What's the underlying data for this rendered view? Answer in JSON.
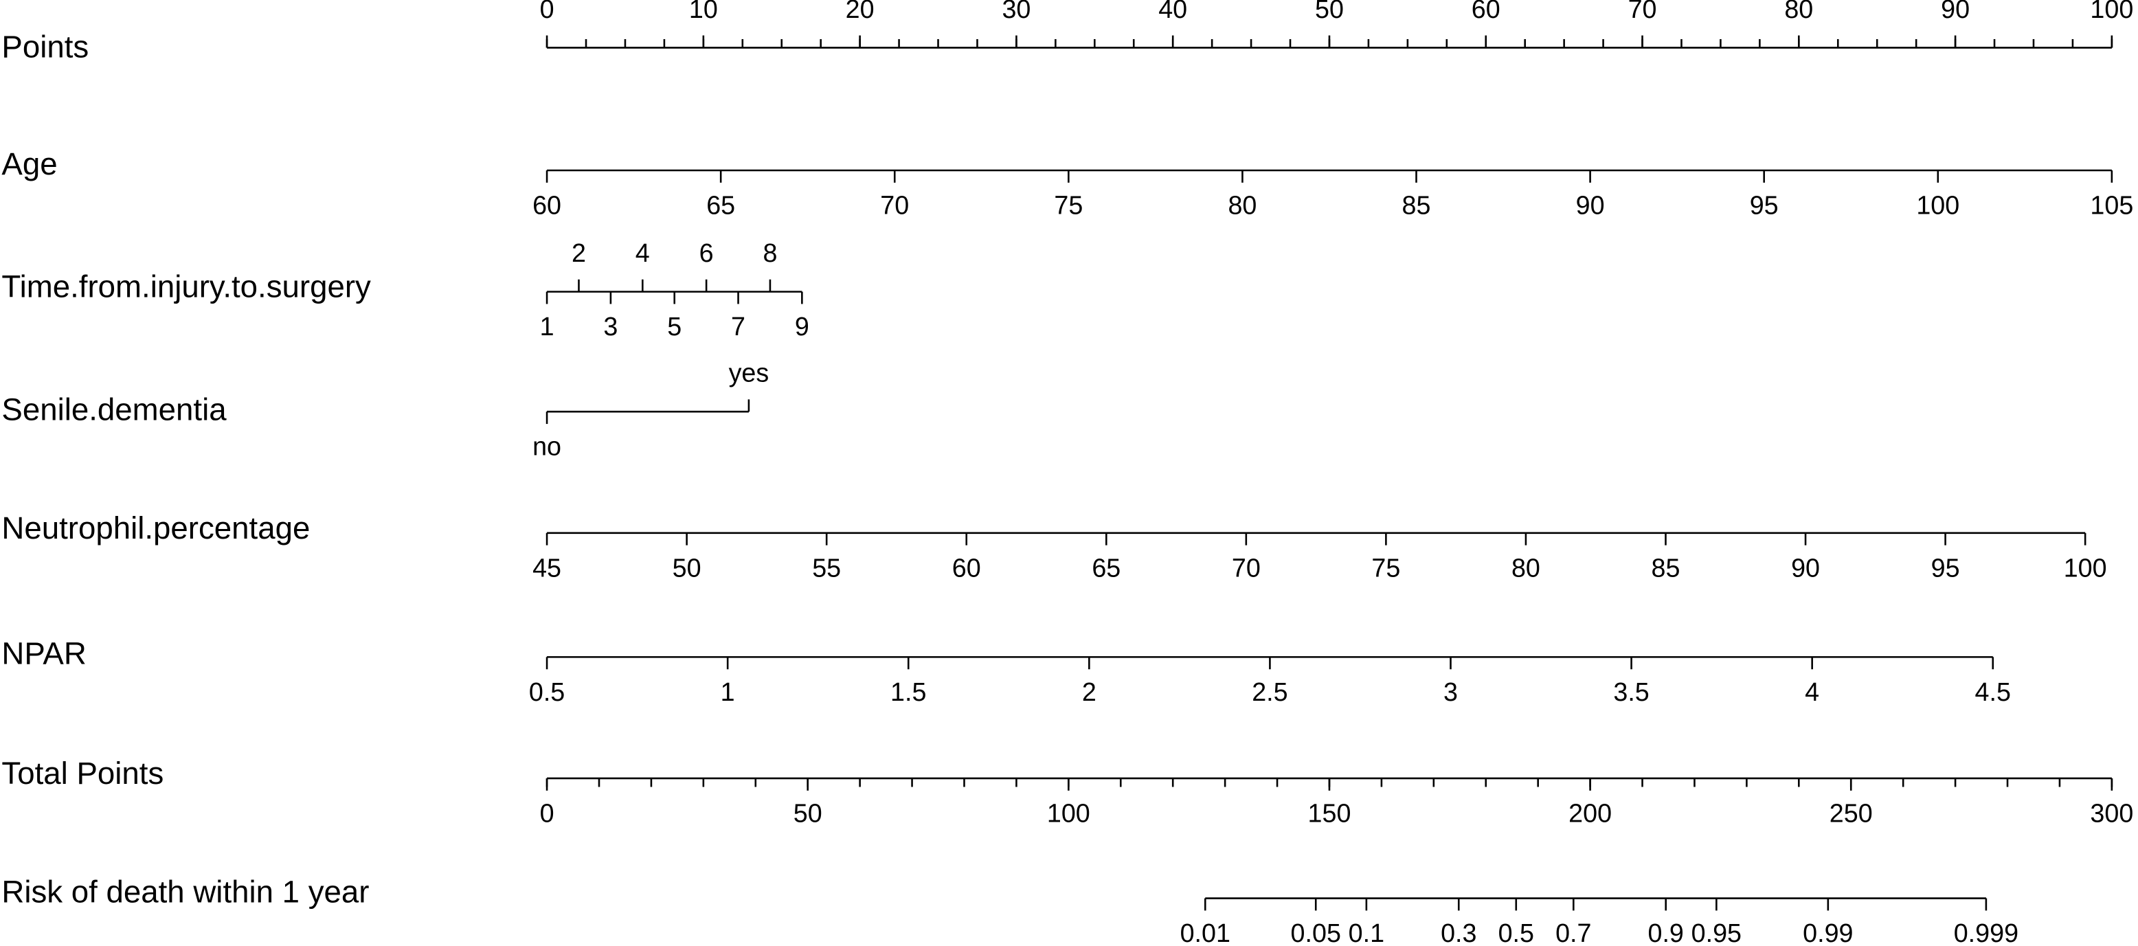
{
  "chart_data": {
    "type": "nomogram",
    "axes": [
      {
        "label": "Points",
        "kind": "linear",
        "range": [
          0,
          100
        ],
        "points_range": [
          0,
          100
        ],
        "ticks": [
          0,
          10,
          20,
          30,
          40,
          50,
          60,
          70,
          80,
          90,
          100
        ],
        "minor_step": 2.5
      },
      {
        "label": "Age",
        "kind": "linear",
        "range": [
          60,
          105
        ],
        "points_range": [
          0,
          100
        ],
        "ticks": [
          60,
          65,
          70,
          75,
          80,
          85,
          90,
          95,
          100,
          105
        ]
      },
      {
        "label": "Time.from.injury.to.surgery",
        "kind": "linear",
        "range": [
          1,
          9
        ],
        "points_range": [
          0,
          16.3
        ],
        "ticks": [
          1,
          2,
          3,
          4,
          5,
          6,
          7,
          8,
          9
        ]
      },
      {
        "label": "Senile.dementia",
        "kind": "categorical",
        "categories": [
          "no",
          "yes"
        ],
        "points": [
          0,
          12.9
        ]
      },
      {
        "label": "Neutrophil.percentage",
        "kind": "linear",
        "range": [
          45,
          100
        ],
        "points_range": [
          0,
          98.3
        ],
        "ticks": [
          45,
          50,
          55,
          60,
          65,
          70,
          75,
          80,
          85,
          90,
          95,
          100
        ]
      },
      {
        "label": "NPAR",
        "kind": "linear",
        "range": [
          0.5,
          4.5
        ],
        "points_range": [
          0,
          92.4
        ],
        "ticks": [
          0.5,
          1,
          1.5,
          2,
          2.5,
          3,
          3.5,
          4,
          4.5
        ]
      },
      {
        "label": "Total Points",
        "kind": "total",
        "range": [
          0,
          300
        ],
        "ticks": [
          0,
          50,
          100,
          150,
          200,
          250,
          300
        ],
        "minor_step": 10
      },
      {
        "label": "Risk of death within 1 year",
        "kind": "risk",
        "ticks": [
          0.01,
          0.05,
          0.1,
          0.3,
          0.5,
          0.7,
          0.9,
          0.95,
          0.99,
          0.999
        ],
        "total_points": [
          126.2,
          147.4,
          157.1,
          174.8,
          185.8,
          196.8,
          214.5,
          224.2,
          245.6,
          275.9
        ]
      }
    ]
  }
}
